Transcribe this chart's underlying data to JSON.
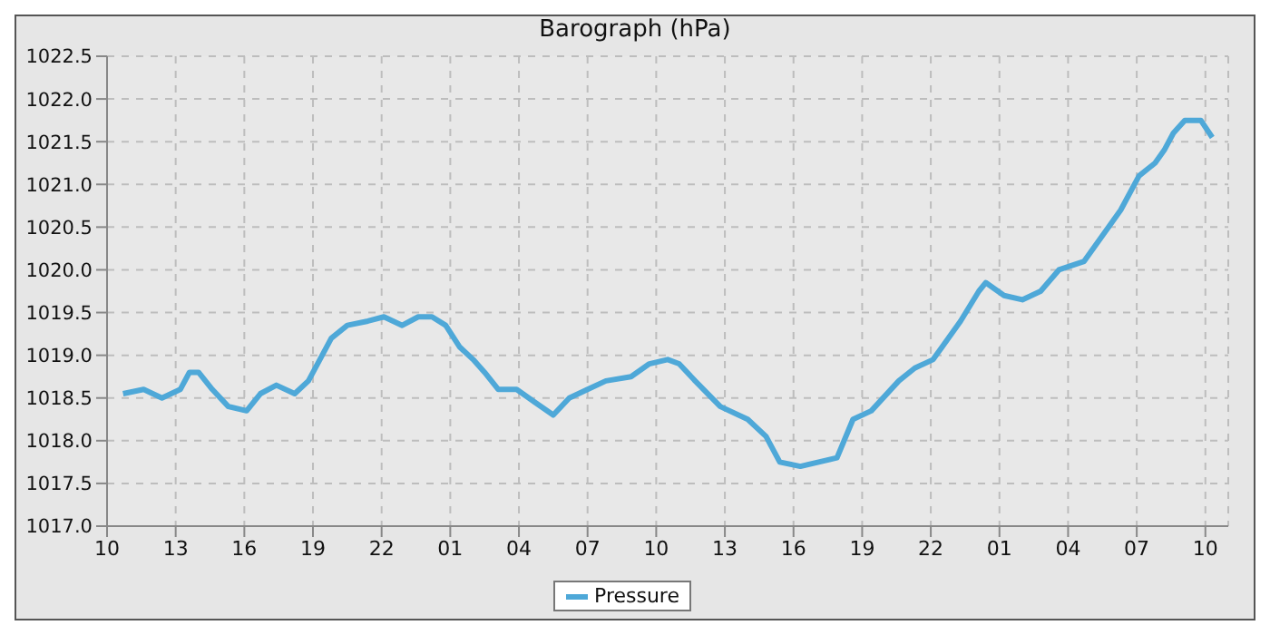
{
  "chart_data": {
    "type": "line",
    "title": "Barograph (hPa)",
    "x": [
      "--01-01T10:42",
      "--01-01T11:36",
      "--01-01T12:24",
      "--01-01T13:12",
      "--01-01T13:36",
      "--01-01T14:00",
      "--01-01T14:36",
      "--01-01T15:18",
      "--01-01T16:06",
      "--01-01T16:42",
      "--01-01T17:24",
      "--01-01T18:12",
      "--01-01T18:48",
      "--01-01T19:12",
      "--01-01T19:48",
      "--01-01T20:30",
      "--01-01T21:24",
      "--01-01T22:06",
      "--01-01T22:54",
      "--01-01T23:36",
      "--01-02T00:12",
      "--01-02T00:48",
      "--01-02T01:24",
      "--01-02T02:00",
      "--01-02T02:30",
      "--01-02T03:06",
      "--01-02T03:54",
      "--01-02T04:42",
      "--01-02T05:30",
      "--01-02T06:12",
      "--01-02T07:00",
      "--01-02T07:48",
      "--01-02T08:54",
      "--01-02T09:42",
      "--01-02T10:30",
      "--01-02T11:00",
      "--01-02T11:42",
      "--01-02T12:48",
      "--01-02T14:00",
      "--01-02T14:48",
      "--01-02T15:24",
      "--01-02T16:18",
      "--01-02T17:06",
      "--01-02T17:54",
      "--01-02T18:36",
      "--01-02T19:24",
      "--01-02T20:36",
      "--01-02T21:18",
      "--01-02T22:06",
      "--01-02T22:30",
      "--01-02T23:18",
      "--01-03T00:06",
      "--01-03T00:24",
      "--01-03T01:12",
      "--01-03T02:00",
      "--01-03T02:48",
      "--01-03T03:36",
      "--01-03T04:42",
      "--01-03T05:30",
      "--01-03T06:18",
      "--01-03T07:06",
      "--01-03T07:48",
      "--01-03T08:12",
      "--01-03T08:36",
      "--01-03T09:06",
      "--01-03T09:48",
      "--01-03T10:18"
    ],
    "series": [
      {
        "name": "Pressure",
        "color": "#4ea8d8",
        "values": [
          1018.55,
          1018.6,
          1018.5,
          1018.6,
          1018.8,
          1018.8,
          1018.6,
          1018.4,
          1018.35,
          1018.55,
          1018.65,
          1018.55,
          1018.7,
          1018.9,
          1019.2,
          1019.35,
          1019.4,
          1019.45,
          1019.35,
          1019.45,
          1019.45,
          1019.35,
          1019.1,
          1018.95,
          1018.8,
          1018.6,
          1018.6,
          1018.45,
          1018.3,
          1018.5,
          1018.6,
          1018.7,
          1018.75,
          1018.9,
          1018.95,
          1018.9,
          1018.7,
          1018.4,
          1018.25,
          1018.05,
          1017.75,
          1017.7,
          1017.75,
          1017.8,
          1018.25,
          1018.35,
          1018.7,
          1018.85,
          1018.95,
          1019.1,
          1019.4,
          1019.75,
          1019.85,
          1019.7,
          1019.65,
          1019.75,
          1020.0,
          1020.1,
          1020.4,
          1020.7,
          1021.1,
          1021.25,
          1021.4,
          1021.6,
          1021.75,
          1021.75,
          1021.55
        ]
      }
    ],
    "xlim": [
      "--01-01T10:00",
      "--01-03T11:00"
    ],
    "xticks": [
      {
        "value": "--01-01T10:00",
        "label": "10"
      },
      {
        "value": "--01-01T13:00",
        "label": "13"
      },
      {
        "value": "--01-01T16:00",
        "label": "16"
      },
      {
        "value": "--01-01T19:00",
        "label": "19"
      },
      {
        "value": "--01-01T22:00",
        "label": "22"
      },
      {
        "value": "--01-02T01:00",
        "label": "01"
      },
      {
        "value": "--01-02T04:00",
        "label": "04"
      },
      {
        "value": "--01-02T07:00",
        "label": "07"
      },
      {
        "value": "--01-02T10:00",
        "label": "10"
      },
      {
        "value": "--01-02T13:00",
        "label": "13"
      },
      {
        "value": "--01-02T16:00",
        "label": "16"
      },
      {
        "value": "--01-02T19:00",
        "label": "19"
      },
      {
        "value": "--01-02T22:00",
        "label": "22"
      },
      {
        "value": "--01-03T01:00",
        "label": "01"
      },
      {
        "value": "--01-03T04:00",
        "label": "04"
      },
      {
        "value": "--01-03T07:00",
        "label": "07"
      },
      {
        "value": "--01-03T10:00",
        "label": "10"
      }
    ],
    "ylim": [
      1017.0,
      1022.5
    ],
    "yticks": [
      {
        "value": 1017.0,
        "label": "1017.0"
      },
      {
        "value": 1017.5,
        "label": "1017.5"
      },
      {
        "value": 1018.0,
        "label": "1018.0"
      },
      {
        "value": 1018.5,
        "label": "1018.5"
      },
      {
        "value": 1019.0,
        "label": "1019.0"
      },
      {
        "value": 1019.5,
        "label": "1019.5"
      },
      {
        "value": 1020.0,
        "label": "1020.0"
      },
      {
        "value": 1020.5,
        "label": "1020.5"
      },
      {
        "value": 1021.0,
        "label": "1021.0"
      },
      {
        "value": 1021.5,
        "label": "1021.5"
      },
      {
        "value": 1022.0,
        "label": "1022.0"
      },
      {
        "value": 1022.5,
        "label": "1022.5"
      }
    ],
    "grid": true,
    "legend": "bottom",
    "marker": "none",
    "line_style": "solid"
  }
}
